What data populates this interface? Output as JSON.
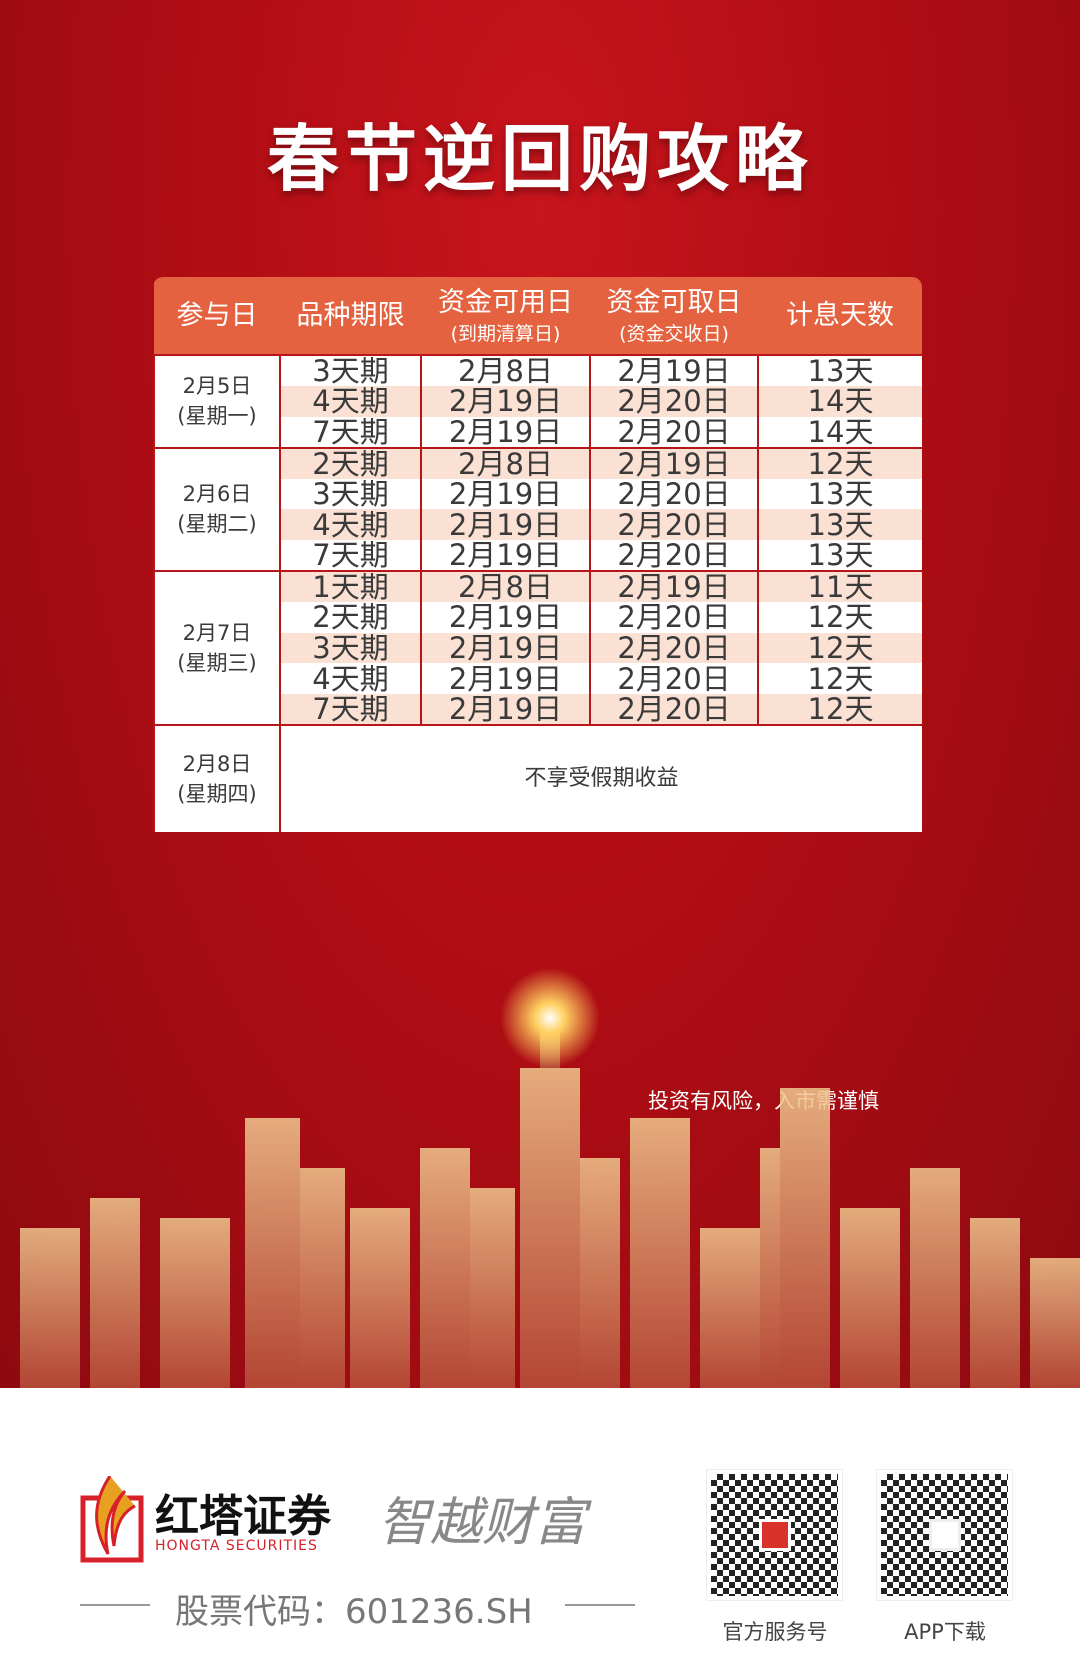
{
  "title": "春节逆回购攻略",
  "table": {
    "headers": [
      {
        "main": "参与日",
        "sub": ""
      },
      {
        "main": "品种期限",
        "sub": ""
      },
      {
        "main": "资金可用日",
        "sub": "(到期清算日)"
      },
      {
        "main": "资金可取日",
        "sub": "(资金交收日)"
      },
      {
        "main": "计息天数",
        "sub": ""
      }
    ],
    "groups": [
      {
        "date": "2月5日",
        "weekday": "(星期一)",
        "rows": [
          [
            "3天期",
            "2月8日",
            "2月19日",
            "13天"
          ],
          [
            "4天期",
            "2月19日",
            "2月20日",
            "14天"
          ],
          [
            "7天期",
            "2月19日",
            "2月20日",
            "14天"
          ]
        ]
      },
      {
        "date": "2月6日",
        "weekday": "(星期二)",
        "rows": [
          [
            "2天期",
            "2月8日",
            "2月19日",
            "12天"
          ],
          [
            "3天期",
            "2月19日",
            "2月20日",
            "13天"
          ],
          [
            "4天期",
            "2月19日",
            "2月20日",
            "13天"
          ],
          [
            "7天期",
            "2月19日",
            "2月20日",
            "13天"
          ]
        ]
      },
      {
        "date": "2月7日",
        "weekday": "(星期三)",
        "rows": [
          [
            "1天期",
            "2月8日",
            "2月19日",
            "11天"
          ],
          [
            "2天期",
            "2月19日",
            "2月20日",
            "12天"
          ],
          [
            "3天期",
            "2月19日",
            "2月20日",
            "12天"
          ],
          [
            "4天期",
            "2月19日",
            "2月20日",
            "12天"
          ],
          [
            "7天期",
            "2月19日",
            "2月20日",
            "12天"
          ]
        ]
      }
    ],
    "last": {
      "date": "2月8日",
      "weekday": "(星期四)",
      "note": "不享受假期收益"
    }
  },
  "disclaimer": "投资有风险，入市需谨慎",
  "footer": {
    "brand_cn": "红塔证券",
    "brand_en": "HONGTA SECURITIES",
    "slogan": "智越财富",
    "stock_code": "股票代码：601236.SH",
    "qr1_label": "官方服务号",
    "qr2_label": "APP下载"
  },
  "colors": {
    "background": "#b00d14",
    "header": "#e4623f",
    "stripe": "#fbe1d4",
    "gold": "#e8b070"
  }
}
